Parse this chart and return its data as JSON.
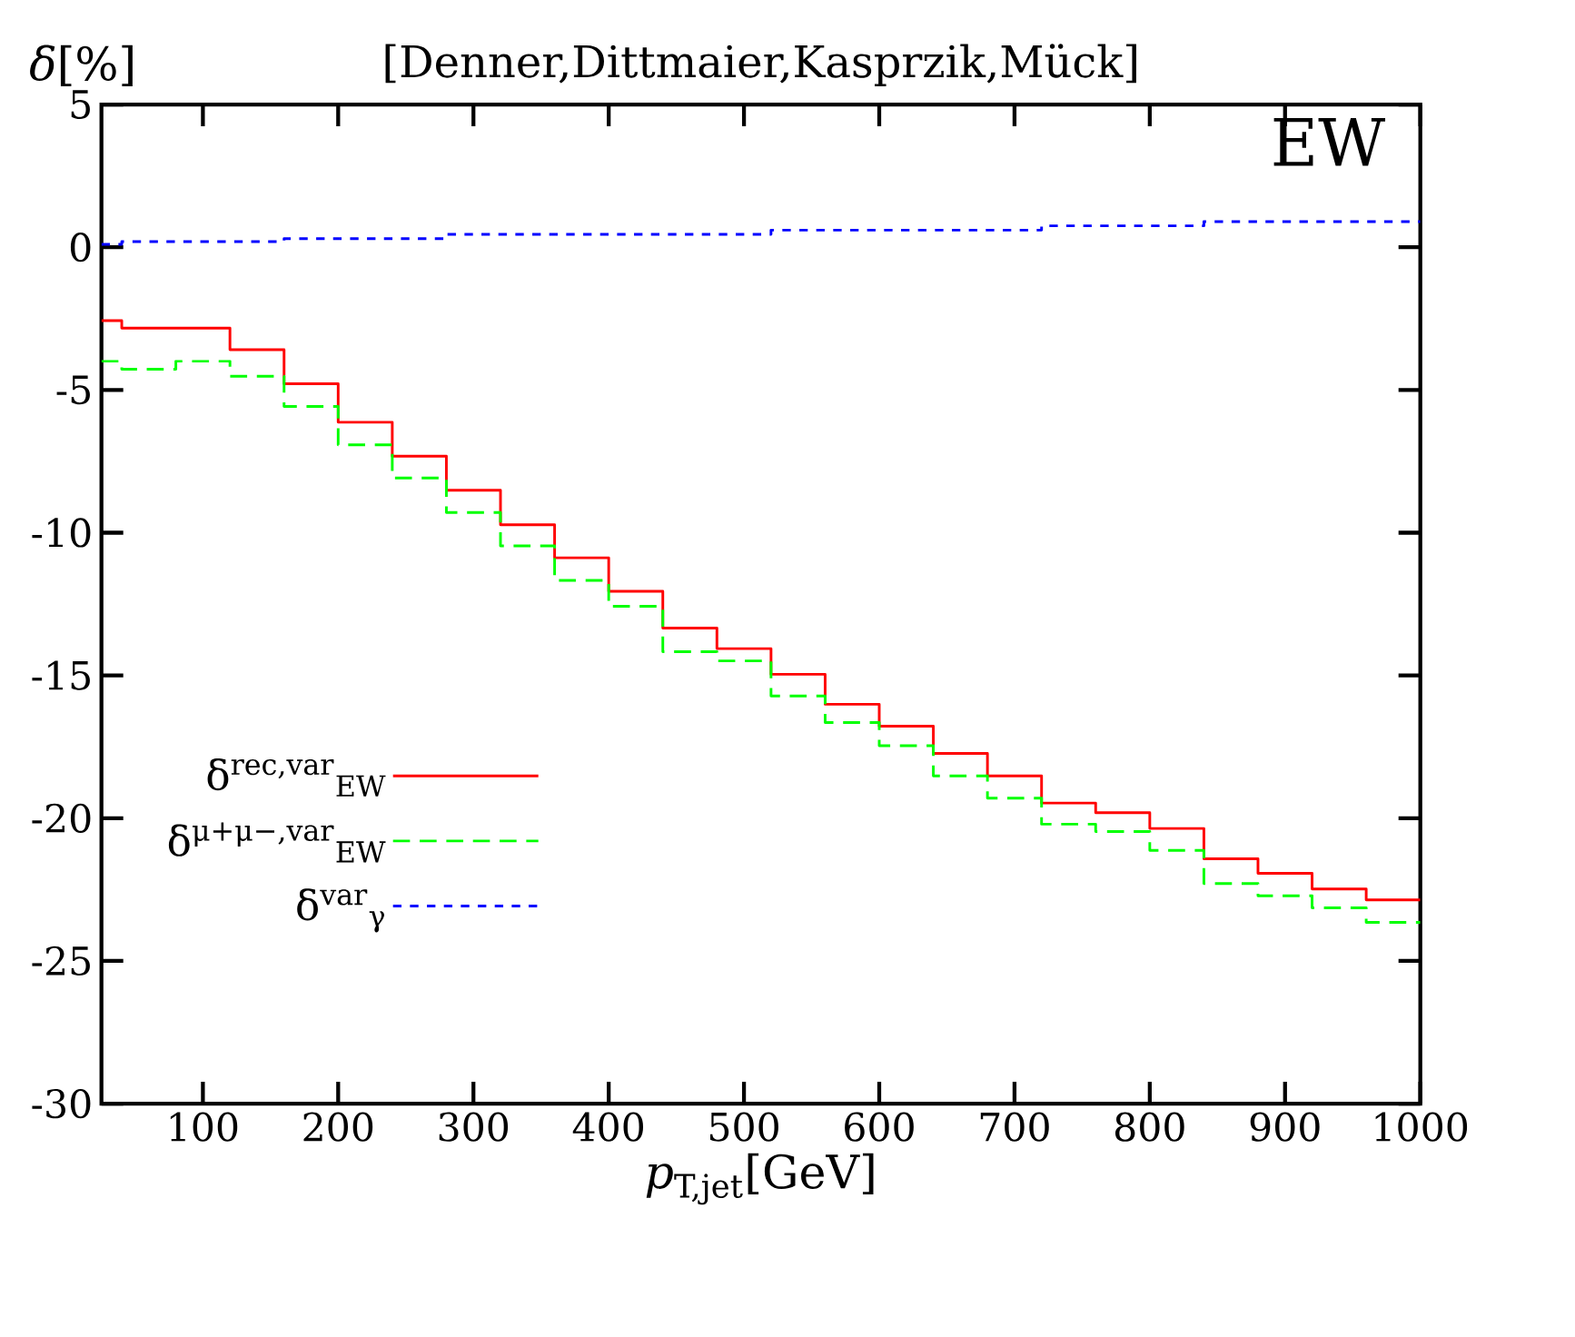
{
  "chart_data": {
    "type": "histogram",
    "title": "[Denner,Dittmaier,Kasprzik,Mück]",
    "xlabel": "*p*$_{T,jet}$[GeV]",
    "ylabel": "*δ*[%]",
    "annotations": [
      "EW"
    ],
    "bins": [
      25,
      40,
      80,
      120,
      160,
      200,
      240,
      280,
      320,
      360,
      400,
      440,
      480,
      520,
      560,
      600,
      640,
      680,
      720,
      760,
      800,
      840,
      880,
      920,
      960,
      1000
    ],
    "series": [
      {
        "name": "δ$^{rec,var}$$_{EW}$",
        "color": "#ff0000",
        "line_style": "solid",
        "values": [
          -2.57,
          -2.83,
          -2.83,
          -3.59,
          -4.78,
          -6.13,
          -7.32,
          -8.51,
          -9.72,
          -10.88,
          -12.05,
          -13.34,
          -14.06,
          -14.96,
          -16.01,
          -16.78,
          -17.73,
          -18.52,
          -19.47,
          -19.81,
          -20.36,
          -21.42,
          -21.93,
          -22.48,
          -22.86
        ]
      },
      {
        "name": "δ$^{μ+μ−,var}$$_{EW}$",
        "color": "#00ff00",
        "line_style": "dashed",
        "values": [
          -3.99,
          -4.27,
          -3.99,
          -4.52,
          -5.58,
          -6.92,
          -8.08,
          -9.29,
          -10.46,
          -11.67,
          -12.58,
          -14.17,
          -14.49,
          -15.72,
          -16.65,
          -17.46,
          -18.52,
          -19.3,
          -20.21,
          -20.47,
          -21.13,
          -22.29,
          -22.72,
          -23.14,
          -23.65
        ]
      },
      {
        "name": "δ$^{var}$$_{γ}$",
        "color": "#0000ff",
        "line_style": "dotted",
        "values": [
          0.1,
          0.2,
          0.2,
          0.2,
          0.3,
          0.3,
          0.3,
          0.45,
          0.45,
          0.45,
          0.45,
          0.45,
          0.45,
          0.6,
          0.6,
          0.6,
          0.6,
          0.6,
          0.75,
          0.75,
          0.75,
          0.9,
          0.9,
          0.9,
          0.9
        ]
      }
    ],
    "xlim": [
      25,
      1000
    ],
    "ylim": [
      -30,
      5
    ],
    "xticks": [
      100,
      200,
      300,
      400,
      500,
      600,
      700,
      800,
      900,
      1000
    ],
    "yticks": [
      -30,
      -25,
      -20,
      -15,
      -10,
      -5,
      0,
      5
    ],
    "grid": false,
    "legend": "bottom left"
  }
}
